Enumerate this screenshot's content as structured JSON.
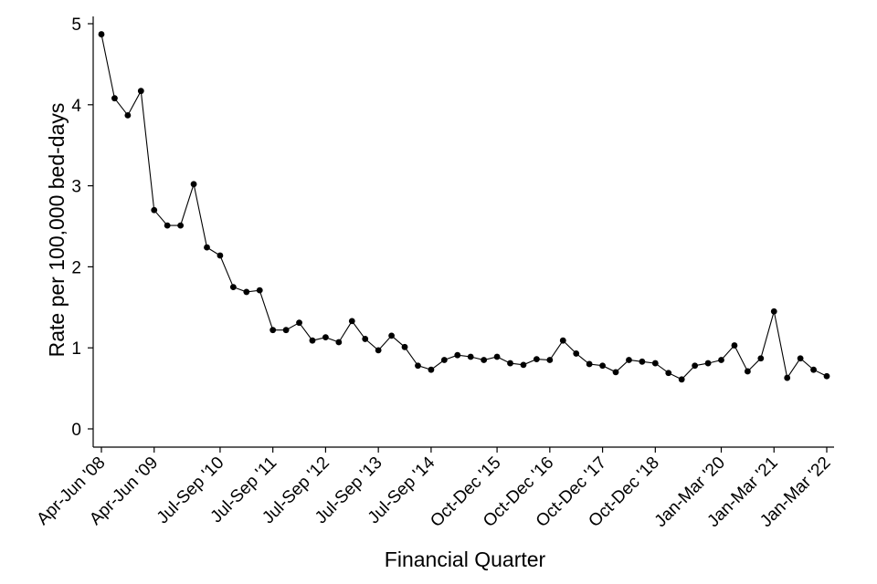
{
  "chart_data": {
    "type": "line",
    "title": "",
    "xlabel": "Financial Quarter",
    "ylabel": "Rate per 100,000 bed-days",
    "ylim": [
      0,
      5
    ],
    "y_ticks": [
      0,
      1,
      2,
      3,
      4,
      5
    ],
    "grid": false,
    "legend": "none",
    "x_tick_labels": [
      {
        "index": 0,
        "label": "Apr-Jun '08"
      },
      {
        "index": 4,
        "label": "Apr-Jun '09"
      },
      {
        "index": 9,
        "label": "Jul-Sep '10"
      },
      {
        "index": 13,
        "label": "Jul-Sep '11"
      },
      {
        "index": 17,
        "label": "Jul-Sep '12"
      },
      {
        "index": 21,
        "label": "Jul-Sep '13"
      },
      {
        "index": 25,
        "label": "Jul-Sep '14"
      },
      {
        "index": 30,
        "label": "Oct-Dec '15"
      },
      {
        "index": 34,
        "label": "Oct-Dec '16"
      },
      {
        "index": 38,
        "label": "Oct-Dec '17"
      },
      {
        "index": 42,
        "label": "Oct-Dec '18"
      },
      {
        "index": 47,
        "label": "Jan-Mar '20"
      },
      {
        "index": 51,
        "label": "Jan-Mar '21"
      },
      {
        "index": 55,
        "label": "Jan-Mar '22"
      }
    ],
    "series": [
      {
        "color": "#000000",
        "values": [
          4.87,
          4.08,
          3.87,
          4.17,
          2.7,
          2.51,
          2.51,
          3.02,
          2.24,
          2.14,
          1.75,
          1.69,
          1.71,
          1.22,
          1.22,
          1.31,
          1.09,
          1.13,
          1.07,
          1.33,
          1.11,
          0.97,
          1.15,
          1.01,
          0.78,
          0.73,
          0.85,
          0.91,
          0.89,
          0.85,
          0.89,
          0.81,
          0.79,
          0.86,
          0.85,
          1.09,
          0.93,
          0.8,
          0.78,
          0.7,
          0.85,
          0.83,
          0.81,
          0.69,
          0.61,
          0.78,
          0.81,
          0.85,
          1.03,
          0.71,
          0.87,
          1.45,
          0.63,
          0.87,
          0.73,
          0.65
        ]
      }
    ]
  }
}
